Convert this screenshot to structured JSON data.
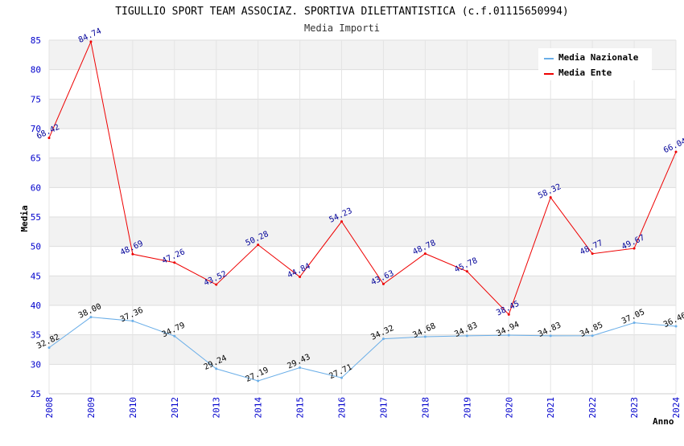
{
  "chart_data": {
    "type": "line",
    "title": "TIGULLIO SPORT TEAM ASSOCIAZ. SPORTIVA DILETTANTISTICA (c.f.01115650994)",
    "subtitle": "Media Importi",
    "xlabel": "Anno",
    "ylabel": "Media",
    "ylim": [
      25,
      85
    ],
    "yticks": [
      25,
      30,
      35,
      40,
      45,
      50,
      55,
      60,
      65,
      70,
      75,
      80,
      85
    ],
    "grid": true,
    "legend_position": "top-right",
    "categories": [
      "2008",
      "2009",
      "2010",
      "2012",
      "2013",
      "2014",
      "2015",
      "2016",
      "2017",
      "2018",
      "2019",
      "2020",
      "2021",
      "2022",
      "2023",
      "2024"
    ],
    "series": [
      {
        "name": "Media Nazionale",
        "color": "#6aaee8",
        "label_color": "#000000",
        "values": [
          32.82,
          38.0,
          37.36,
          34.79,
          29.24,
          27.19,
          29.43,
          27.71,
          34.32,
          34.68,
          34.83,
          34.94,
          34.83,
          34.85,
          37.05,
          36.46
        ],
        "labels": [
          "32.82",
          "38.00",
          "37.36",
          "34.79",
          "29.24",
          "27.19",
          "29.43",
          "27.71",
          "34.32",
          "34.68",
          "34.83",
          "34.94",
          "34.83",
          "34.85",
          "37.05",
          "36.46"
        ]
      },
      {
        "name": "Media Ente",
        "color": "#ee0000",
        "label_color": "#000099",
        "values": [
          68.42,
          84.74,
          48.69,
          47.26,
          43.52,
          50.28,
          44.84,
          54.23,
          43.63,
          48.78,
          45.78,
          38.45,
          58.32,
          48.77,
          49.67,
          66.04
        ],
        "labels": [
          "68.42",
          "84.74",
          "48.69",
          "47.26",
          "43.52",
          "50.28",
          "44.84",
          "54.23",
          "43.63",
          "48.78",
          "45.78",
          "38.45",
          "58.32",
          "48.77",
          "49.67",
          "66.04"
        ]
      }
    ]
  }
}
